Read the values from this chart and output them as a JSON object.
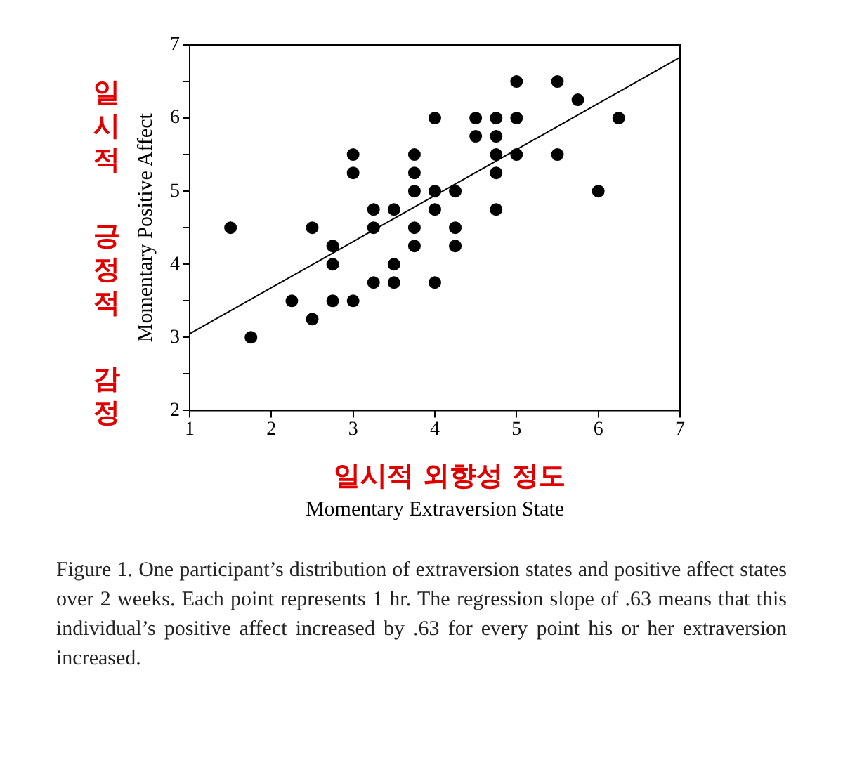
{
  "chart_data": {
    "type": "scatter",
    "xlabel": "Momentary Extraversion State",
    "ylabel": "Momentary Positive Affect",
    "xlim": [
      1,
      7
    ],
    "xticks": [
      1,
      2,
      3,
      4,
      5,
      6,
      7
    ],
    "ylim": [
      2,
      7
    ],
    "yticks": [
      2,
      3,
      4,
      5,
      6,
      7
    ],
    "grid": false,
    "marker": "circle",
    "series": [
      {
        "color": "#000000",
        "x": [
          1.5,
          1.75,
          2.25,
          2.5,
          2.5,
          2.75,
          2.75,
          2.75,
          3,
          3,
          3,
          3.25,
          3.25,
          3.25,
          3.5,
          3.5,
          3.5,
          3.75,
          3.75,
          3.75,
          3.75,
          3.75,
          4,
          4,
          4,
          4,
          4.25,
          4.25,
          4.25,
          4.5,
          4.5,
          4.75,
          4.75,
          4.75,
          4.75,
          4.75,
          5,
          5,
          5,
          5.5,
          5.5,
          5.75,
          6,
          6.25
        ],
        "values": [
          4.5,
          3.0,
          3.5,
          4.5,
          3.25,
          4.25,
          4.0,
          3.5,
          5.5,
          5.25,
          3.5,
          4.75,
          4.5,
          3.75,
          4.75,
          4.0,
          3.75,
          5.5,
          5.25,
          5.0,
          4.5,
          4.25,
          6.0,
          5.0,
          4.75,
          3.75,
          5.0,
          4.5,
          4.25,
          6.0,
          5.75,
          6.0,
          5.75,
          5.5,
          5.25,
          4.75,
          6.5,
          6.0,
          5.5,
          6.5,
          5.5,
          6.25,
          5.0,
          6.0
        ]
      },
      {
        "type": "line",
        "color": "#000000",
        "marker": "none",
        "x": [
          1,
          7
        ],
        "values": [
          3.05,
          6.83
        ]
      }
    ],
    "annotations": [
      "일시적 긍정적 감정",
      "일시적 외향성 정도",
      "Figure 1. One participant’s distribution of extraversion states and positive affect states over 2 weeks. Each point represents 1 hr. The regression slope of .63 means that this individual’s positive affect increased by .63 for every point his or her extraversion increased."
    ]
  }
}
